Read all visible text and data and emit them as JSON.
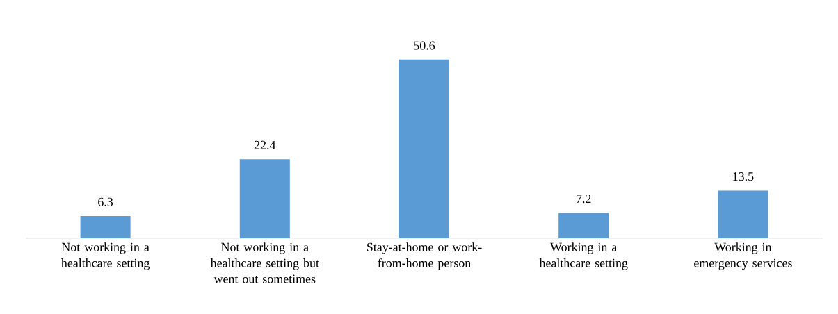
{
  "chart_data": {
    "type": "bar",
    "categories": [
      "Not working in a healthcare setting",
      "Not working in a healthcare setting but went out sometimes",
      "Stay-at-home or work-from-home person",
      "Working in a healthcare setting",
      "Working in emergency services"
    ],
    "values": [
      6.3,
      22.4,
      50.6,
      7.2,
      13.5
    ],
    "color": "#5b9bd5",
    "data_labels": true
  }
}
